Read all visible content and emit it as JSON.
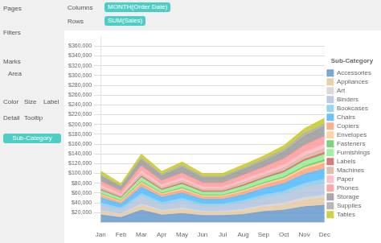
{
  "chart_data": {
    "type": "area",
    "stacked": true,
    "grid": "y",
    "legend": "right",
    "legend_title": "Sub-Category",
    "annotations": [
      "Pages",
      "Filters",
      "Marks",
      "Area",
      "Color",
      "Size",
      "Label",
      "Detail",
      "Tooltip",
      "Sub-Category",
      "Columns",
      "Rows",
      "MONTH(Order Date)",
      "SUM(Sales)"
    ],
    "categories": [
      "Jan",
      "Feb",
      "Mar",
      "Apr",
      "May",
      "Jun",
      "Jul",
      "Aug",
      "Sep",
      "Oct",
      "Nov",
      "Dec"
    ],
    "series": [
      {
        "name": "Accessories",
        "color": "#6699cc",
        "values": [
          15000,
          10000,
          25000,
          15000,
          18000,
          14000,
          14000,
          16000,
          22000,
          25000,
          32000,
          35000
        ]
      },
      {
        "name": "Appliances",
        "color": "#e8c8a0",
        "values": [
          6000,
          5000,
          9000,
          7000,
          8000,
          6000,
          6000,
          7000,
          9000,
          10000,
          13000,
          14000
        ]
      },
      {
        "name": "Art",
        "color": "#d3d3d3",
        "values": [
          3000,
          2500,
          4000,
          3000,
          4000,
          3000,
          3000,
          4000,
          4000,
          5000,
          6000,
          7000
        ]
      },
      {
        "name": "Binders",
        "color": "#b0c4de",
        "values": [
          12000,
          9000,
          16000,
          12000,
          14000,
          11000,
          11000,
          13000,
          16000,
          18000,
          22000,
          25000
        ]
      },
      {
        "name": "Bookcases",
        "color": "#87ceeb",
        "values": [
          4000,
          3000,
          5000,
          4000,
          5000,
          4000,
          4000,
          5000,
          5000,
          6000,
          7000,
          8000
        ]
      },
      {
        "name": "Chairs",
        "color": "#4db8ff",
        "values": [
          10000,
          8000,
          13000,
          10000,
          11000,
          9000,
          9000,
          11000,
          13000,
          15000,
          18000,
          20000
        ]
      },
      {
        "name": "Copiers",
        "color": "#ffa07a",
        "values": [
          5000,
          4000,
          7000,
          5000,
          6000,
          5000,
          5000,
          6000,
          7000,
          8000,
          10000,
          11000
        ]
      },
      {
        "name": "Envelopes",
        "color": "#ffcc99",
        "values": [
          2500,
          2000,
          3000,
          2500,
          3000,
          2500,
          2500,
          3000,
          3000,
          3500,
          4000,
          4500
        ]
      },
      {
        "name": "Fasteners",
        "color": "#66cc66",
        "values": [
          1500,
          1200,
          2000,
          1500,
          2000,
          1500,
          1500,
          2000,
          2000,
          2500,
          3000,
          3500
        ]
      },
      {
        "name": "Furnishings",
        "color": "#90ee90",
        "values": [
          6000,
          5000,
          8000,
          6000,
          7000,
          6000,
          6000,
          7000,
          8000,
          9000,
          10000,
          11000
        ]
      },
      {
        "name": "Labels",
        "color": "#cc6666",
        "values": [
          2000,
          1500,
          2500,
          2000,
          2500,
          2000,
          2000,
          2500,
          2500,
          3000,
          3500,
          4000
        ]
      },
      {
        "name": "Machines",
        "color": "#d8b4a0",
        "values": [
          4000,
          3000,
          5000,
          4000,
          5000,
          4000,
          4000,
          5000,
          5000,
          6000,
          7000,
          8000
        ]
      },
      {
        "name": "Paper",
        "color": "#ffb6c1",
        "values": [
          5000,
          4000,
          6000,
          5000,
          6000,
          5000,
          5000,
          6000,
          6000,
          7000,
          8000,
          9000
        ]
      },
      {
        "name": "Phones",
        "color": "#ff9999",
        "values": [
          8000,
          6000,
          10000,
          8000,
          9000,
          8000,
          8000,
          9000,
          10000,
          12000,
          14000,
          16000
        ]
      },
      {
        "name": "Storage",
        "color": "#999999",
        "values": [
          10000,
          8000,
          12000,
          10000,
          12000,
          10000,
          10000,
          11000,
          12000,
          14000,
          18000,
          20000
        ]
      },
      {
        "name": "Supplies",
        "color": "#aaaaaa",
        "values": [
          3000,
          2000,
          4000,
          3000,
          4000,
          3000,
          3000,
          3000,
          4000,
          5000,
          6000,
          5000
        ]
      },
      {
        "name": "Tables",
        "color": "#c5c926",
        "values": [
          8000,
          5000,
          8000,
          6000,
          7000,
          6000,
          6000,
          7000,
          7000,
          8000,
          10000,
          12000
        ]
      }
    ],
    "ylim": [
      0,
      380000
    ],
    "yticks": [
      {
        "value": 20000,
        "label": "$20,000"
      },
      {
        "value": 40000,
        "label": "$40,000"
      },
      {
        "value": 60000,
        "label": "$60,000"
      },
      {
        "value": 80000,
        "label": "$80,000"
      },
      {
        "value": 100000,
        "label": "$100,000"
      },
      {
        "value": 120000,
        "label": "$120,000"
      },
      {
        "value": 140000,
        "label": "$140,000"
      },
      {
        "value": 160000,
        "label": "$160,000"
      },
      {
        "value": 180000,
        "label": "$180,000"
      },
      {
        "value": 200000,
        "label": "$200,000"
      },
      {
        "value": 220000,
        "label": "$220,000"
      },
      {
        "value": 240000,
        "label": "$240,000"
      },
      {
        "value": 260000,
        "label": "$260,000"
      },
      {
        "value": 280000,
        "label": "$280,000"
      },
      {
        "value": 300000,
        "label": "$300,000"
      },
      {
        "value": 320000,
        "label": "$320,000"
      },
      {
        "value": 340000,
        "label": "$340,000"
      },
      {
        "value": 360000,
        "label": "$360,000"
      }
    ]
  }
}
